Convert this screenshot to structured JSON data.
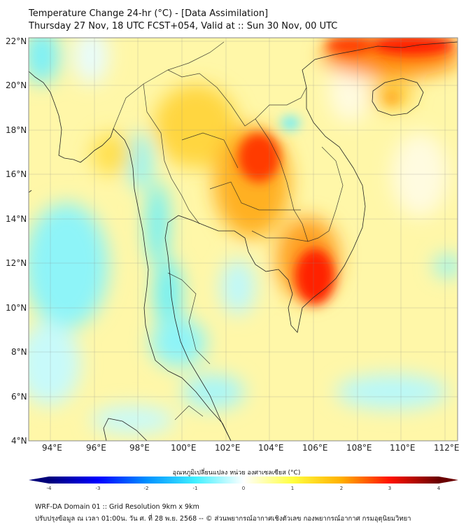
{
  "header": {
    "title": "Temperature Change 24-hr (°C) - [Data Assimilation]",
    "subtitle": "Thursday 27 Nov, 18 UTC FCST+054, Valid at :: Sun 30 Nov, 00 UTC"
  },
  "map": {
    "lat_labels": [
      "22°N",
      "20°N",
      "18°N",
      "16°N",
      "14°N",
      "12°N",
      "10°N",
      "8°N",
      "6°N",
      "4°N"
    ],
    "lon_labels": [
      "94°E",
      "96°E",
      "98°E",
      "100°E",
      "102°E",
      "104°E",
      "106°E",
      "108°E",
      "110°E",
      "112°E"
    ],
    "extent": {
      "lon": [
        93,
        112.5
      ],
      "lat": [
        4,
        22.15
      ]
    }
  },
  "colorbar": {
    "label": "อุณหภูมิเปลี่ยนแปลง หน่วย องศาเซลเซียส (°C)",
    "ticks": [
      "-4",
      "-3",
      "-2",
      "-1",
      "0",
      "1",
      "2",
      "3",
      "4"
    ],
    "range": [
      -4,
      4
    ],
    "colors": [
      "#00007a",
      "#0000ff",
      "#0090ff",
      "#40f0ff",
      "#ffffff",
      "#ffff40",
      "#ffb000",
      "#ff1000",
      "#6a0000"
    ]
  },
  "footer": {
    "line1": "WRF-DA Domain 01 :: Grid Resolution 9km x 9km",
    "line2": "ปรับปรุงข้อมูล ณ เวลา 01:00น. วัน ศ. ที่ 28 พ.ย. 2568 -- © ส่วนพยากรณ์อากาศเชิงตัวเลข กองพยากรณ์อากาศ กรมอุตุนิยมวิทยา"
  }
}
